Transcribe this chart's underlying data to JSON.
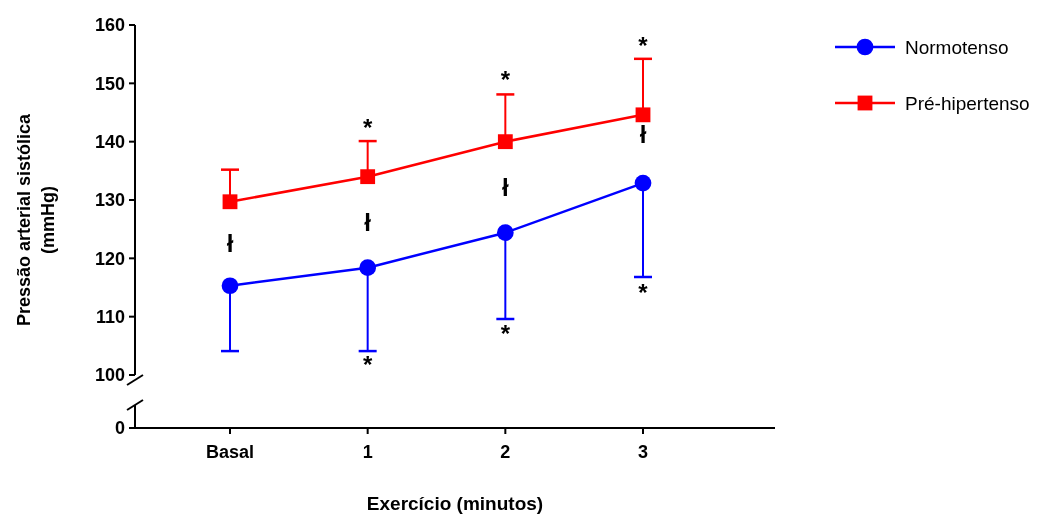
{
  "chart_data": {
    "type": "line",
    "ylabel": "Pressão arterial sistólica\n(mmHg)",
    "xlabel": "Exercício (minutos)",
    "categories": [
      "Basal",
      "1",
      "2",
      "3"
    ],
    "ylim": [
      100,
      160
    ],
    "yticks": [
      100,
      110,
      120,
      130,
      140,
      150,
      160
    ],
    "legend": "top right",
    "series": [
      {
        "name": "Normotenso",
        "color": "#0000ff",
        "marker": "circle",
        "values": [
          115.3,
          118.4,
          124.4,
          132.9
        ],
        "errors": [
          [
            104.1,
            115.3
          ],
          [
            104.1,
            118.4
          ],
          [
            109.6,
            124.4
          ],
          [
            116.8,
            132.9
          ]
        ]
      },
      {
        "name": "Pré-hipertenso",
        "color": "#ff0000",
        "marker": "square",
        "values": [
          129.7,
          134,
          140,
          144.6
        ],
        "errors": [
          [
            129.7,
            135.2
          ],
          [
            134,
            140.1
          ],
          [
            140,
            148.1
          ],
          [
            144.6,
            154.2
          ]
        ]
      }
    ],
    "annotations": [
      "ł",
      "ł",
      "ł",
      "ł",
      "*",
      "*",
      "*",
      "*",
      "*",
      "*",
      "0"
    ]
  }
}
